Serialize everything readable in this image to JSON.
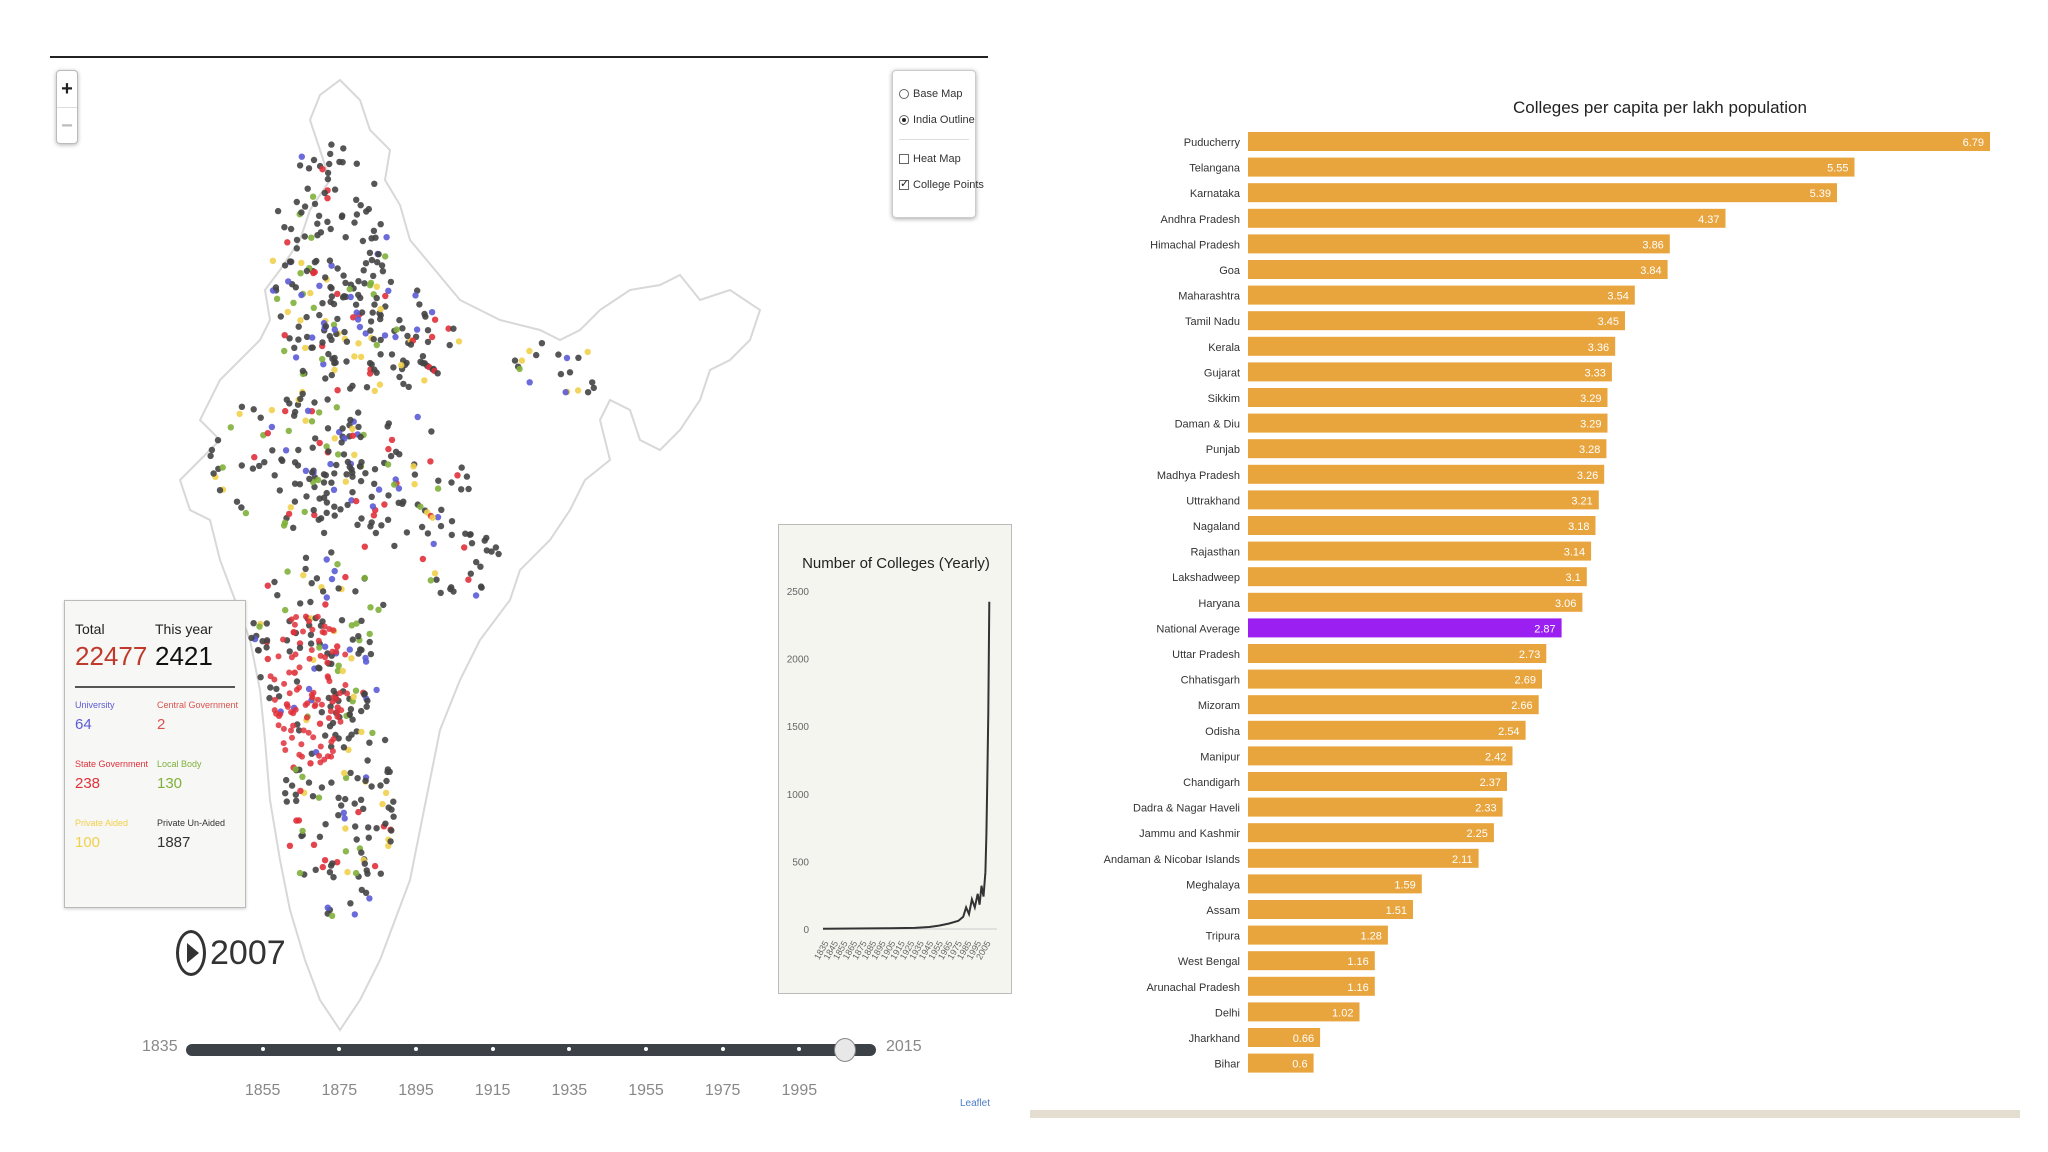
{
  "map": {
    "zoom_in": "+",
    "zoom_out": "−",
    "layers": {
      "base_map": "Base Map",
      "india_outline": "India Outline",
      "heat_map": "Heat Map",
      "college_points": "College Points"
    },
    "stats": {
      "total_label": "Total",
      "total_value": "22477",
      "year_label": "This year",
      "year_value": "2421",
      "university_label": "University",
      "university_value": "64",
      "central_label": "Central Government",
      "central_value": "2",
      "state_label": "State Government",
      "state_value": "238",
      "local_label": "Local Body",
      "local_value": "130",
      "aided_label": "Private Aided",
      "aided_value": "100",
      "unaided_label": "Private Un-Aided",
      "unaided_value": "1887"
    },
    "colors": {
      "university": "#5b5bd6",
      "central": "#d9534f",
      "state": "#e0303a",
      "local": "#7fb03a",
      "aided": "#f1d04a",
      "unaided": "#333333",
      "points": "#444444"
    },
    "play_icon": "play-icon",
    "current_year": "2007",
    "slider": {
      "start": "1835",
      "end": "2015",
      "position_year": 2007,
      "labels": [
        "1855",
        "1875",
        "1895",
        "1915",
        "1935",
        "1955",
        "1975",
        "1995"
      ]
    },
    "attribution": "Leaflet"
  },
  "mini_chart": {
    "title": "Number of Colleges (Yearly)",
    "y_ticks": [
      "2500",
      "2000",
      "1500",
      "1000",
      "500",
      "0"
    ],
    "ylim": [
      0,
      2500
    ],
    "x_start": 1835,
    "x_end": 2015,
    "x_tick_labels": [
      "1835",
      "1845",
      "1855",
      "1865",
      "1875",
      "1885",
      "1895",
      "1905",
      "1915",
      "1925",
      "1935",
      "1945",
      "1955",
      "1965",
      "1975",
      "1985",
      "1995",
      "2005"
    ],
    "series": [
      [
        1835,
        2
      ],
      [
        1900,
        5
      ],
      [
        1930,
        8
      ],
      [
        1945,
        15
      ],
      [
        1955,
        25
      ],
      [
        1965,
        40
      ],
      [
        1975,
        60
      ],
      [
        1980,
        90
      ],
      [
        1983,
        160
      ],
      [
        1986,
        110
      ],
      [
        1989,
        220
      ],
      [
        1992,
        160
      ],
      [
        1995,
        260
      ],
      [
        1997,
        180
      ],
      [
        1999,
        320
      ],
      [
        2001,
        240
      ],
      [
        2003,
        420
      ],
      [
        2004,
        700
      ],
      [
        2005,
        1100
      ],
      [
        2006,
        1600
      ],
      [
        2007,
        2421
      ]
    ]
  },
  "chart_data": {
    "type": "bar",
    "title": "Colleges per capita per lakh population",
    "orientation": "horizontal",
    "bar_color": "#e8a43d",
    "highlight_color": "#9b1ff0",
    "highlight_category": "National Average",
    "xlim": [
      0,
      6.79
    ],
    "categories": [
      "Puducherry",
      "Telangana",
      "Karnataka",
      "Andhra Pradesh",
      "Himachal Pradesh",
      "Goa",
      "Maharashtra",
      "Tamil Nadu",
      "Kerala",
      "Gujarat",
      "Sikkim",
      "Daman & Diu",
      "Punjab",
      "Madhya Pradesh",
      "Uttrakhand",
      "Nagaland",
      "Rajasthan",
      "Lakshadweep",
      "Haryana",
      "National Average",
      "Uttar Pradesh",
      "Chhatisgarh",
      "Mizoram",
      "Odisha",
      "Manipur",
      "Chandigarh",
      "Dadra & Nagar Haveli",
      "Jammu and Kashmir",
      "Andaman & Nicobar Islands",
      "Meghalaya",
      "Assam",
      "Tripura",
      "West Bengal",
      "Arunachal Pradesh",
      "Delhi",
      "Jharkhand",
      "Bihar"
    ],
    "values": [
      6.79,
      5.55,
      5.39,
      4.37,
      3.86,
      3.84,
      3.54,
      3.45,
      3.36,
      3.33,
      3.29,
      3.29,
      3.28,
      3.26,
      3.21,
      3.18,
      3.14,
      3.1,
      3.06,
      2.87,
      2.73,
      2.69,
      2.66,
      2.54,
      2.42,
      2.37,
      2.33,
      2.25,
      2.11,
      1.59,
      1.51,
      1.28,
      1.16,
      1.16,
      1.02,
      0.66,
      0.6
    ],
    "value_labels": [
      "6.79",
      "5.55",
      "5.39",
      "4.37",
      "3.86",
      "3.84",
      "3.54",
      "3.45",
      "3.36",
      "3.33",
      "3.29",
      "3.29",
      "3.28",
      "3.26",
      "3.21",
      "3.18",
      "3.14",
      "3.1",
      "3.06",
      "2.87",
      "2.73",
      "2.69",
      "2.66",
      "2.54",
      "2.42",
      "2.37",
      "2.33",
      "2.25",
      "2.11",
      "1.59",
      "1.51",
      "1.28",
      "1.16",
      "1.16",
      "1.02",
      "0.66",
      "0.6"
    ]
  }
}
